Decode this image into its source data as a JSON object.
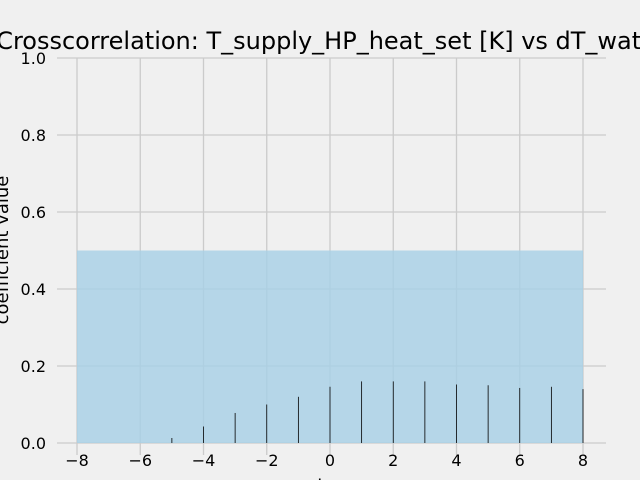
{
  "chart_data": {
    "type": "bar",
    "title": "Crosscorrelation: T_supply_HP_heat_set [K] vs dT_water",
    "xlabel": "lag",
    "ylabel": "coefficient value",
    "xlim": [
      -8,
      8
    ],
    "ylim": [
      0,
      1
    ],
    "xticks": [
      "−8",
      "−6",
      "−4",
      "−2",
      "0",
      "2",
      "4",
      "6",
      "8"
    ],
    "yticks": [
      "0.0",
      "0.2",
      "0.4",
      "0.6",
      "0.8",
      "1.0"
    ],
    "grid": true,
    "confidence_band": {
      "y0": 0,
      "y1": 0.5,
      "x0": -8,
      "x1": 8,
      "color": "#a6cfe6"
    },
    "x": [
      -8,
      -7,
      -6,
      -5,
      -4,
      -3,
      -2,
      -1,
      0,
      1,
      2,
      3,
      4,
      5,
      6,
      7,
      8
    ],
    "values": [
      0.0,
      0.0,
      0.0,
      0.013,
      0.043,
      0.078,
      0.1,
      0.12,
      0.146,
      0.16,
      0.16,
      0.16,
      0.152,
      0.15,
      0.143,
      0.146,
      0.14
    ]
  }
}
